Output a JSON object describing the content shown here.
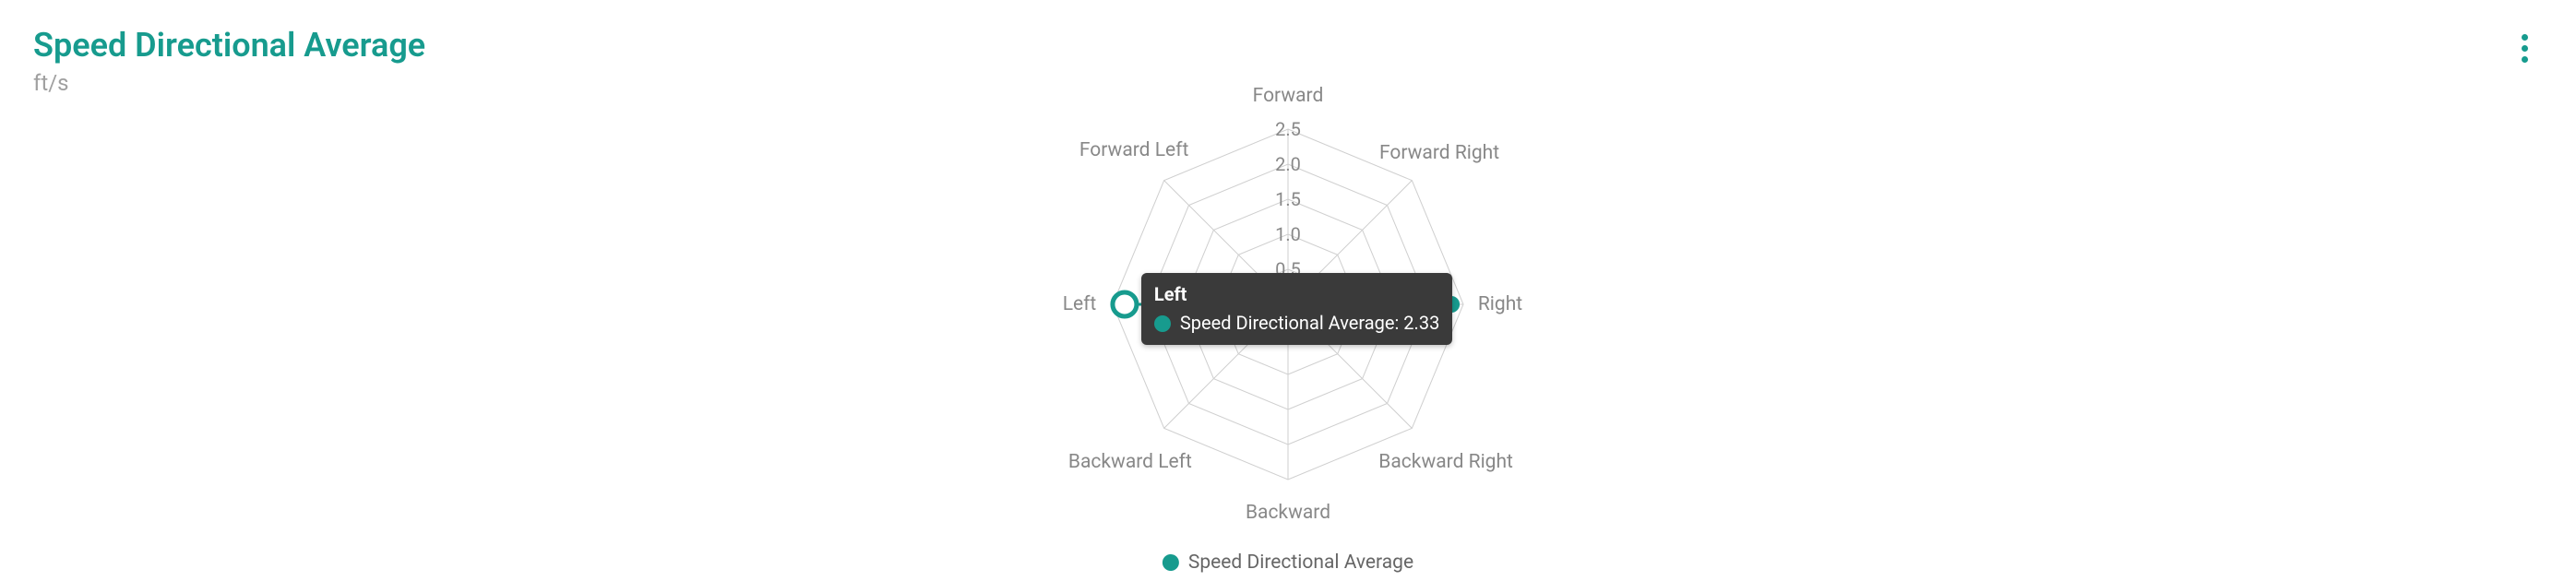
{
  "header": {
    "title": "Speed Directional Average",
    "subtitle": "ft/s"
  },
  "colors": {
    "accent": "#179b8e",
    "grid": "#cfcfcf",
    "axis_label": "#888888",
    "tooltip_bg": "#3a3a3a",
    "tooltip_text": "#ffffff",
    "background": "#ffffff"
  },
  "chart": {
    "type": "radar",
    "axes": [
      "Forward",
      "Forward Right",
      "Right",
      "Backward Right",
      "Backward",
      "Backward Left",
      "Left",
      "Forward Left"
    ],
    "radial_ticks": [
      0.5,
      1.0,
      1.5,
      2.0,
      2.5
    ],
    "radial_max": 2.5,
    "series": [
      {
        "name": "Speed Directional Average",
        "color": "#179b8e",
        "values": [
          0,
          0,
          2.33,
          0,
          0,
          0,
          2.33,
          0
        ],
        "marker_radius": 9,
        "line_width": 3
      }
    ],
    "grid_line_width": 1,
    "axis_label_fontsize": 21,
    "tick_label_fontsize": 20
  },
  "tooltip": {
    "title": "Left",
    "series_label": "Speed Directional Average",
    "value": "2.33",
    "swatch_color": "#179b8e"
  },
  "legend": {
    "label": "Speed Directional Average",
    "swatch_color": "#179b8e"
  }
}
